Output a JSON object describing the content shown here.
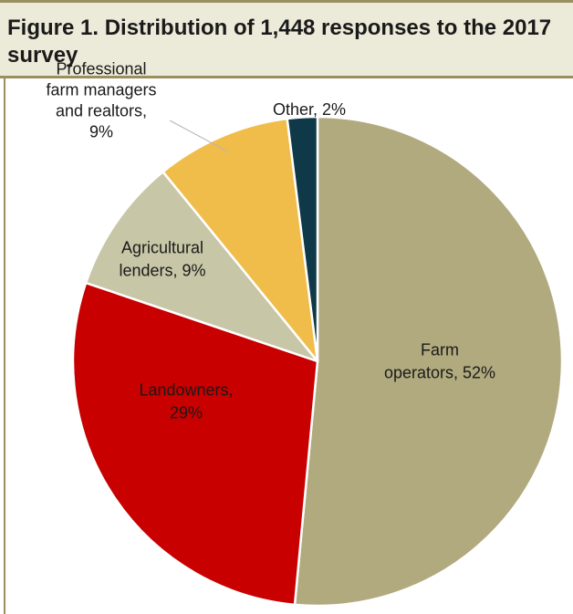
{
  "figure": {
    "title": "Figure 1. Distribution of 1,448 responses to the 2017 survey"
  },
  "chart_data": {
    "type": "pie",
    "title": "Figure 1. Distribution of 1,448 responses to the 2017 survey",
    "slices": [
      {
        "key": "farm-operators",
        "label": "Farm operators, 52%",
        "label_lines": [
          "Farm",
          "operators, 52%"
        ],
        "value": 52,
        "color": "#b1aa7e"
      },
      {
        "key": "landowners",
        "label": "Landowners, 29%",
        "label_lines": [
          "Landowners,",
          "29%"
        ],
        "value": 29,
        "color": "#c80000"
      },
      {
        "key": "agricultural-lenders",
        "label": "Agricultural lenders, 9%",
        "label_lines": [
          "Agricultural",
          "lenders, 9%"
        ],
        "value": 9,
        "color": "#c7c6a7"
      },
      {
        "key": "professional-farm-managers",
        "label": "Professional farm managers and realtors, 9%",
        "label_lines": [
          "Professional",
          "farm managers",
          "and realtors,",
          "9%"
        ],
        "value": 9,
        "color": "#f0bd4b"
      },
      {
        "key": "other",
        "label": "Other, 2%",
        "label_lines": [
          "Other, 2%"
        ],
        "value": 2,
        "color": "#0f3848"
      }
    ],
    "start": "12 o'clock",
    "direction": "clockwise",
    "legend": "none (direct labels)"
  }
}
